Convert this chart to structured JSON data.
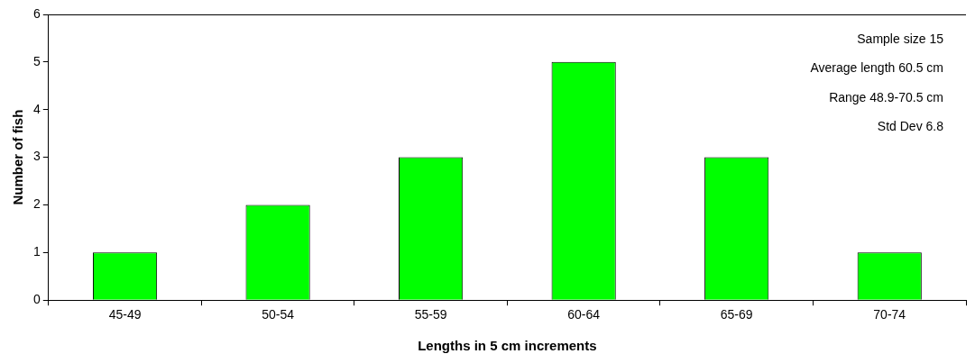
{
  "chart_data": {
    "type": "bar",
    "xlabel": "Lengths in 5 cm increments",
    "ylabel": "Number of fish",
    "categories": [
      "45-49",
      "50-54",
      "55-59",
      "60-64",
      "65-69",
      "70-74"
    ],
    "values": [
      1,
      2,
      3,
      5,
      3,
      1
    ],
    "color": "#00ff00",
    "ylim": [
      0,
      6
    ],
    "yticks": [
      0,
      1,
      2,
      3,
      4,
      5,
      6
    ],
    "grid": false,
    "legend": false,
    "annotations": [
      "Sample size 15",
      "Average length 60.5 cm",
      "Range 48.9-70.5 cm",
      "Std Dev 6.8"
    ]
  }
}
